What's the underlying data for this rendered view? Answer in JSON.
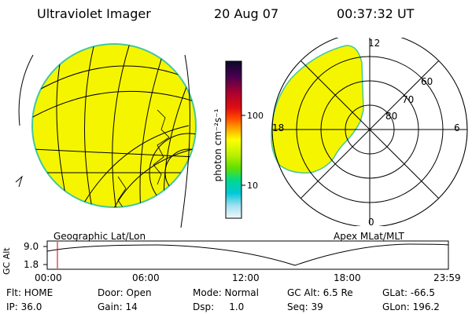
{
  "header": {
    "instrument": "Ultraviolet Imager",
    "date": "20 Aug 07",
    "time": "00:37:32 UT"
  },
  "colorbar": {
    "unit_label": "photon cm⁻²s⁻¹",
    "ticks": [
      "100",
      "10"
    ],
    "colors": [
      "#1a0a2e",
      "#3a0040",
      "#6a0066",
      "#8b0028",
      "#cc0000",
      "#e83010",
      "#ff8c00",
      "#ffd700",
      "#ffff00",
      "#c8f000",
      "#7cf000",
      "#00e070",
      "#00d8d8",
      "#b0e8f0",
      "#e8f4f4"
    ]
  },
  "left_panel": {
    "caption": "Geographic Lat/Lon",
    "fill_color": "#f5f500"
  },
  "polar_panel": {
    "caption": "Apex MLat/MLT",
    "mlt_labels": [
      "12",
      "18",
      "6",
      "0"
    ],
    "mlat_labels": [
      "60",
      "70",
      "80"
    ],
    "fill_color": "#f5f500"
  },
  "altitude_plot": {
    "ylabel": "GC Alt",
    "y_ticks": [
      "9.0",
      "1.8"
    ],
    "x_ticks": [
      "00:00",
      "06:00",
      "12:00",
      "18:00",
      "23:59"
    ],
    "marker_color": "#cc0000"
  },
  "status": {
    "flt": "Flt: HOME",
    "ip": "IP: 36.0",
    "door": "Door: Open",
    "gain": "Gain: 14",
    "mode": "Mode: Normal",
    "dsp": "Dsp:     1.0",
    "gc_alt": "GC Alt: 6.5 Re",
    "seq": "Seq: 39",
    "glat": "GLat: -66.5",
    "glon": "GLon: 196.2"
  }
}
